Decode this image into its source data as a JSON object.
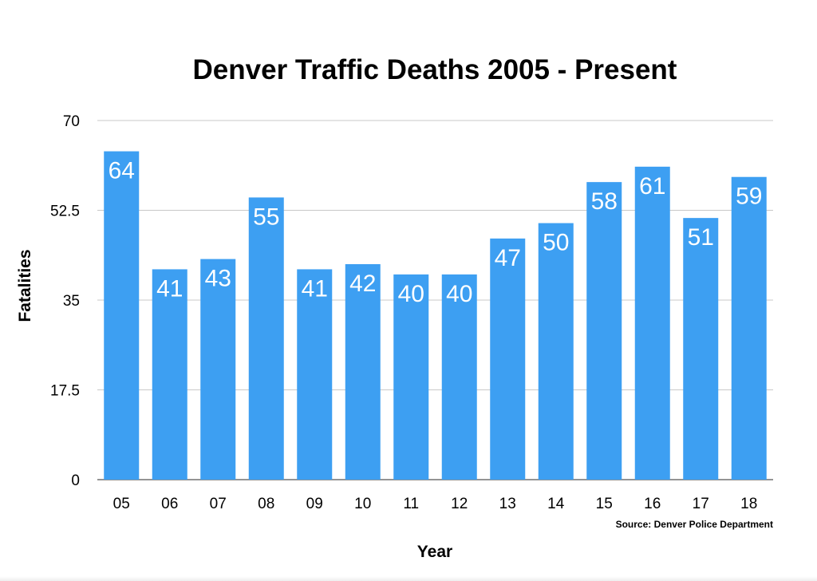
{
  "chart_data": {
    "type": "bar",
    "title": "Denver Traffic Deaths 2005 - Present",
    "xlabel": "Year",
    "ylabel": "Fatalities",
    "categories": [
      "05",
      "06",
      "07",
      "08",
      "09",
      "10",
      "11",
      "12",
      "13",
      "14",
      "15",
      "16",
      "17",
      "18"
    ],
    "values": [
      64,
      41,
      43,
      55,
      41,
      42,
      40,
      40,
      47,
      50,
      58,
      61,
      51,
      59
    ],
    "ylim": [
      0,
      70
    ],
    "yticks": [
      "0",
      "17.5",
      "35",
      "52.5",
      "70"
    ],
    "grid": true,
    "legend": "none",
    "data_labels": "inside-top",
    "source": "Source: Denver Police Department",
    "colors": {
      "bar": "#3d9ff2",
      "label": "#ffffff",
      "grid": "#c8c8c8",
      "axis": "#555555",
      "text": "#000000"
    }
  }
}
